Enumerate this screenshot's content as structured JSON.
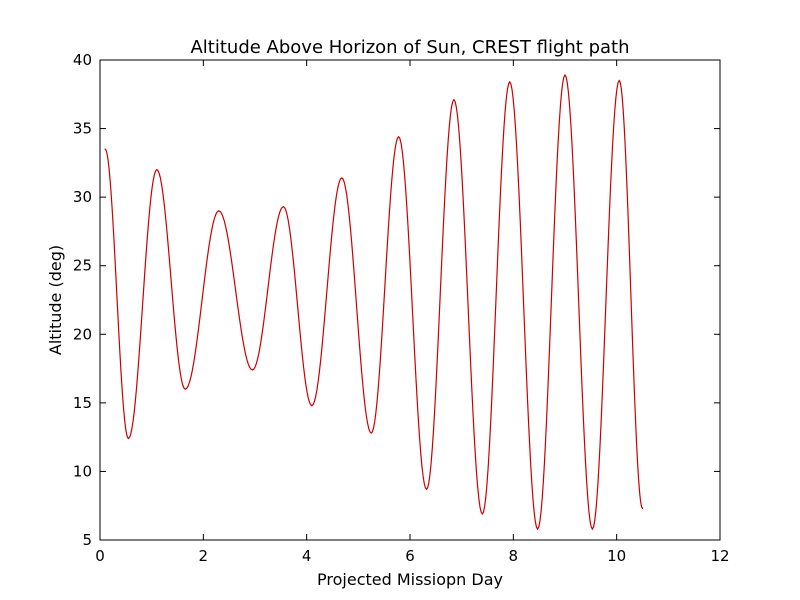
{
  "chart_data": {
    "type": "line",
    "title": "Altitude Above Horizon of Sun, CREST flight path",
    "xlabel": "Projected Missiopn Day",
    "ylabel": "Altitude (deg)",
    "xlim": [
      0,
      12
    ],
    "ylim": [
      5,
      40
    ],
    "x_ticks": [
      "0",
      "2",
      "4",
      "6",
      "8",
      "10",
      "12"
    ],
    "y_ticks": [
      "5",
      "10",
      "15",
      "20",
      "25",
      "30",
      "35",
      "40"
    ],
    "grid": false,
    "legend": "none",
    "series": [
      {
        "color": "#cc0000",
        "x": [
          0.1,
          0.55,
          1.1,
          1.65,
          2.3,
          2.95,
          3.55,
          4.1,
          4.68,
          5.25,
          5.78,
          6.32,
          6.85,
          7.4,
          7.93,
          8.47,
          9.0,
          9.53,
          10.05,
          10.5
        ],
        "y": [
          33.5,
          12.4,
          32.0,
          16.0,
          29.0,
          17.4,
          29.3,
          14.8,
          31.4,
          12.8,
          34.4,
          8.7,
          37.1,
          6.9,
          38.4,
          5.8,
          38.9,
          5.8,
          38.5,
          7.3
        ]
      }
    ]
  }
}
